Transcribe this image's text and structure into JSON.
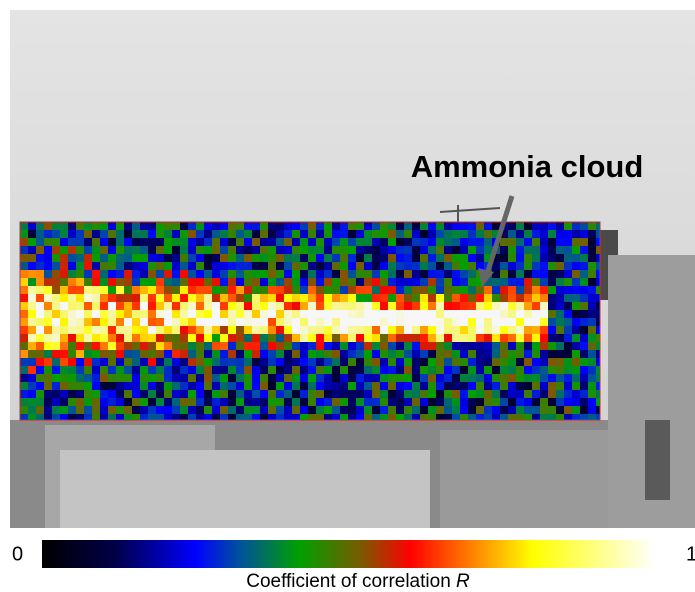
{
  "annotation": "Ammonia cloud",
  "colorbar": {
    "ticks": [
      0,
      1
    ],
    "label": "Coefficient of correlation ",
    "label_symbol": "R"
  }
}
